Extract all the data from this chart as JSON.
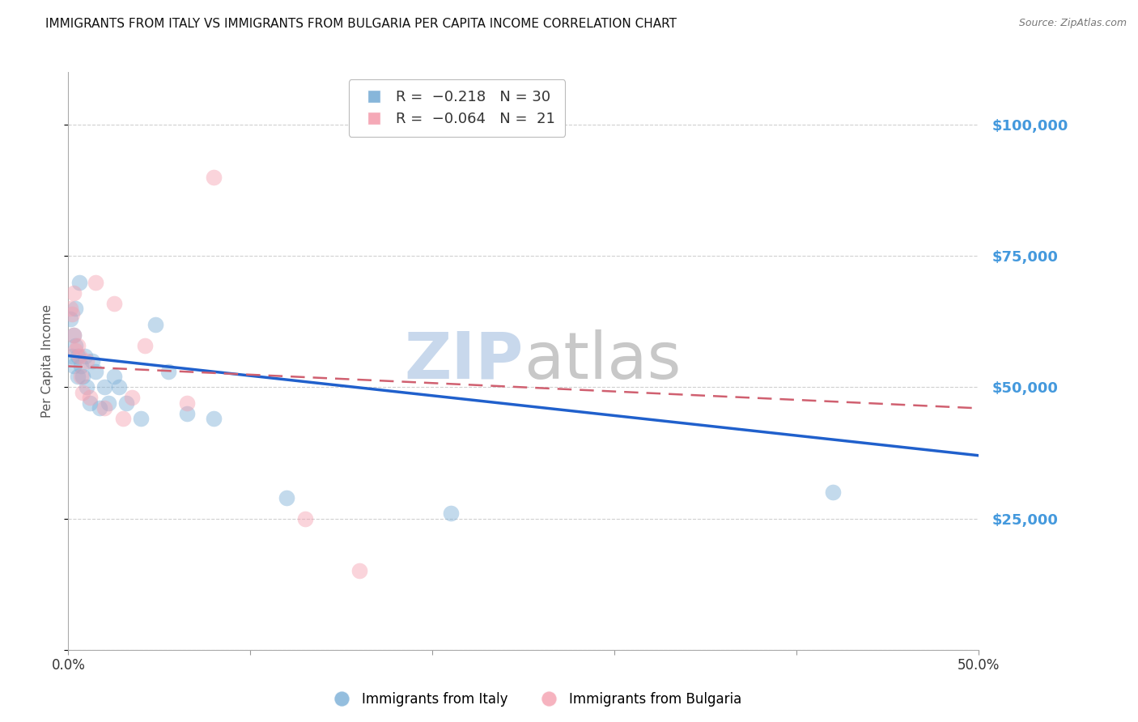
{
  "title": "IMMIGRANTS FROM ITALY VS IMMIGRANTS FROM BULGARIA PER CAPITA INCOME CORRELATION CHART",
  "source": "Source: ZipAtlas.com",
  "ylabel_label": "Per Capita Income",
  "x_min": 0.0,
  "x_max": 0.5,
  "y_min": 0,
  "y_max": 110000,
  "yticks": [
    0,
    25000,
    50000,
    75000,
    100000
  ],
  "xticks": [
    0.0,
    0.1,
    0.2,
    0.3,
    0.4,
    0.5
  ],
  "xtick_labels": [
    "0.0%",
    "",
    "",
    "",
    "",
    "50.0%"
  ],
  "grid_color": "#d0d0d0",
  "background_color": "#ffffff",
  "watermark_text1": "ZIP",
  "watermark_text2": "atlas",
  "legend_r_italy": "R =  -0.218",
  "legend_n_italy": "N = 30",
  "legend_r_bulgaria": "R =  -0.064",
  "legend_n_bulgaria": "N =  21",
  "italy_color": "#7aaed6",
  "bulgaria_color": "#f4a0b0",
  "italy_trendline_color": "#2060cc",
  "bulgaria_trendline_color": "#d06070",
  "right_axis_color": "#4499dd",
  "italy_scatter_x": [
    0.001,
    0.002,
    0.003,
    0.003,
    0.004,
    0.004,
    0.005,
    0.005,
    0.006,
    0.007,
    0.008,
    0.009,
    0.01,
    0.012,
    0.013,
    0.015,
    0.017,
    0.02,
    0.022,
    0.025,
    0.028,
    0.032,
    0.04,
    0.048,
    0.055,
    0.065,
    0.08,
    0.12,
    0.21,
    0.42
  ],
  "italy_scatter_y": [
    63000,
    56000,
    54000,
    60000,
    58000,
    65000,
    52000,
    56000,
    70000,
    54000,
    52000,
    56000,
    50000,
    47000,
    55000,
    53000,
    46000,
    50000,
    47000,
    52000,
    50000,
    47000,
    44000,
    62000,
    53000,
    45000,
    44000,
    29000,
    26000,
    30000
  ],
  "bulgaria_scatter_x": [
    0.001,
    0.002,
    0.003,
    0.003,
    0.004,
    0.005,
    0.006,
    0.007,
    0.008,
    0.01,
    0.012,
    0.015,
    0.02,
    0.025,
    0.03,
    0.035,
    0.042,
    0.065,
    0.08,
    0.13,
    0.16
  ],
  "bulgaria_scatter_y": [
    65000,
    64000,
    60000,
    68000,
    57000,
    58000,
    56000,
    52000,
    49000,
    55000,
    48000,
    70000,
    46000,
    66000,
    44000,
    48000,
    58000,
    47000,
    90000,
    25000,
    15000
  ],
  "italy_trend_x0": 0.0,
  "italy_trend_y0": 56000,
  "italy_trend_x1": 0.5,
  "italy_trend_y1": 37000,
  "bulgaria_trend_x0": 0.0,
  "bulgaria_trend_y0": 54000,
  "bulgaria_trend_x1": 0.5,
  "bulgaria_trend_y1": 46000,
  "marker_size": 200,
  "marker_alpha": 0.45,
  "legend_italy": "Immigrants from Italy",
  "legend_bulgaria": "Immigrants from Bulgaria"
}
